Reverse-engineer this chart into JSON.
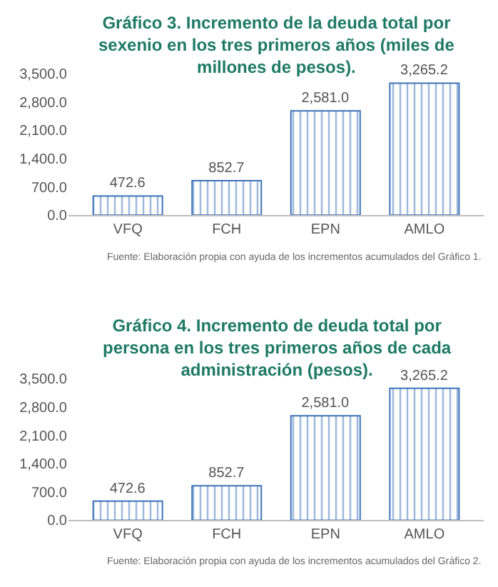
{
  "chart_data": [
    {
      "type": "bar",
      "title": "Gráfico 3. Incremento de la deuda total por sexenio en los tres primeros años (miles de millones de pesos).",
      "categories": [
        "VFQ",
        "FCH",
        "EPN",
        "AMLO"
      ],
      "values": [
        472.6,
        852.7,
        2581.0,
        3265.2
      ],
      "value_labels": [
        "472.6",
        "852.7",
        "2,581.0",
        "3,265.2"
      ],
      "color": "#3d73b9",
      "ylim": [
        0,
        3500
      ],
      "yticks": [
        {
          "value": 0,
          "label": "0.0"
        },
        {
          "value": 700,
          "label": "700.0"
        },
        {
          "value": 1400,
          "label": "1,400.0"
        },
        {
          "value": 2100,
          "label": "2,100.0"
        },
        {
          "value": 2800,
          "label": "2,800.0"
        },
        {
          "value": 3500,
          "label": "3,500.0"
        }
      ],
      "grid": false,
      "annotations": [
        "Fuente: Elaboración propia con ayuda de los incrementos acumulados del Gráfico 1."
      ]
    },
    {
      "type": "bar",
      "title": "Gráfico 4. Incremento de deuda total por persona en los tres primeros años de cada administración (pesos).",
      "categories": [
        "VFQ",
        "FCH",
        "EPN",
        "AMLO"
      ],
      "values": [
        472.6,
        852.7,
        2581.0,
        3265.2
      ],
      "value_labels": [
        "472.6",
        "852.7",
        "2,581.0",
        "3,265.2"
      ],
      "color": "#3d73b9",
      "ylim": [
        0,
        3500
      ],
      "yticks": [
        {
          "value": 0,
          "label": "0.0"
        },
        {
          "value": 700,
          "label": "700.0"
        },
        {
          "value": 1400,
          "label": "1,400.0"
        },
        {
          "value": 2100,
          "label": "2,100.0"
        },
        {
          "value": 2800,
          "label": "2,800.0"
        },
        {
          "value": 3500,
          "label": "3,500.0"
        }
      ],
      "grid": false,
      "annotations": [
        "Fuente: Elaboración propia con ayuda de los incrementos acumulados del Gráfico 2."
      ]
    }
  ]
}
